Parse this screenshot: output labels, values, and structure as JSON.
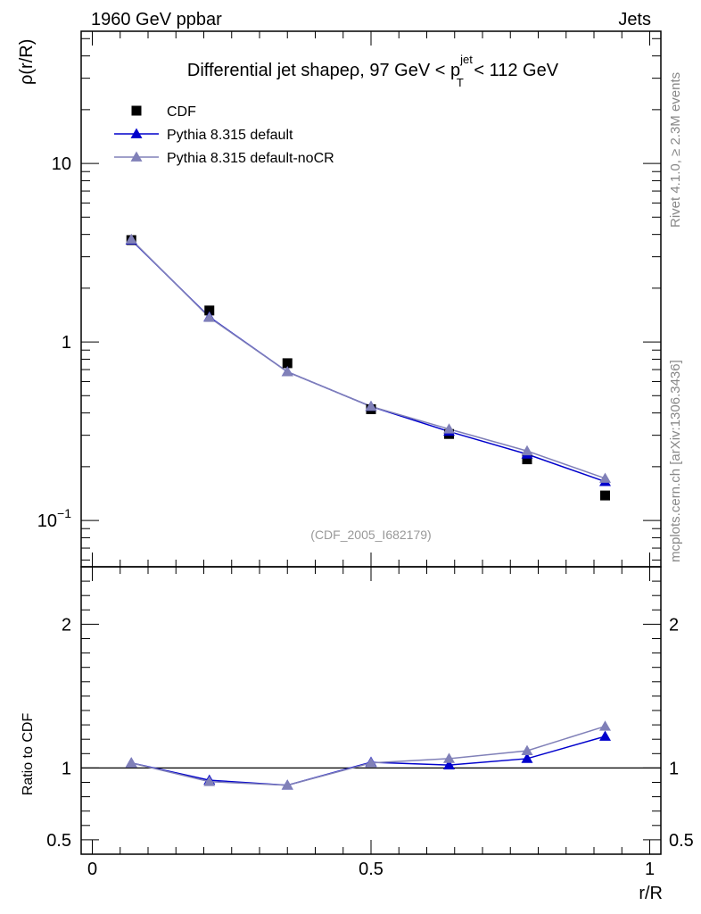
{
  "header": {
    "left": "1960 GeV ppbar",
    "right": "Jets"
  },
  "side_text": {
    "rivet": "Rivet 4.1.0, ≥ 2.3M events",
    "mcplots": "mcplots.cern.ch [arXiv:1306.3436]"
  },
  "chart_data": [
    {
      "type": "scatter",
      "panel": "main",
      "title_parts": {
        "pre": "Differential jet shapeρ, 97 GeV < p",
        "sup": "jet",
        "sub": "T",
        "post": " < 112 GeV"
      },
      "ylabel": "ρ(r/R)",
      "xlabel": "r/R",
      "yscale": "log",
      "ylim": [
        0.055,
        55
      ],
      "xlim": [
        -0.02,
        1.02
      ],
      "y_tick_labels": [
        {
          "value": 0.1,
          "base": "10",
          "exp": "−1"
        },
        {
          "value": 1,
          "base": "1",
          "exp": ""
        },
        {
          "value": 10,
          "base": "10",
          "exp": ""
        }
      ],
      "watermark": "(CDF_2005_I682179)",
      "legend_position": "top-left",
      "x": [
        0.07,
        0.21,
        0.35,
        0.5,
        0.64,
        0.78,
        0.92
      ],
      "series": [
        {
          "name": "CDF",
          "marker": "square",
          "color": "#000000",
          "values": [
            3.72,
            1.5,
            0.76,
            0.42,
            0.305,
            0.22,
            0.138
          ]
        },
        {
          "name": "Pythia 8.315 default",
          "marker": "triangle",
          "color": "#0000cc",
          "values": [
            3.72,
            1.38,
            0.68,
            0.435,
            0.315,
            0.235,
            0.165
          ]
        },
        {
          "name": "Pythia 8.315 default-noCR",
          "marker": "triangle",
          "color": "#8080b8",
          "values": [
            3.75,
            1.37,
            0.68,
            0.435,
            0.325,
            0.245,
            0.172
          ]
        }
      ]
    },
    {
      "type": "line",
      "panel": "ratio",
      "ylabel": "Ratio to CDF",
      "xlabel": "r/R",
      "ylim": [
        0.4,
        2.4
      ],
      "xlim": [
        -0.02,
        1.02
      ],
      "y_tick_labels": [
        {
          "value": 0.5,
          "label": "0.5"
        },
        {
          "value": 1,
          "label": "1"
        },
        {
          "value": 2,
          "label": "2"
        }
      ],
      "x_tick_labels": [
        {
          "value": 0,
          "label": "0"
        },
        {
          "value": 0.5,
          "label": "0.5"
        },
        {
          "value": 1,
          "label": "1"
        }
      ],
      "reference_line": 1,
      "x": [
        0.07,
        0.21,
        0.35,
        0.5,
        0.64,
        0.78,
        0.92
      ],
      "series": [
        {
          "name": "Pythia 8.315 default",
          "color": "#0000cc",
          "values": [
            1.035,
            0.915,
            0.88,
            1.04,
            1.02,
            1.065,
            1.22
          ]
        },
        {
          "name": "Pythia 8.315 default-noCR",
          "color": "#8080b8",
          "values": [
            1.035,
            0.905,
            0.88,
            1.035,
            1.065,
            1.12,
            1.29
          ]
        }
      ]
    }
  ]
}
